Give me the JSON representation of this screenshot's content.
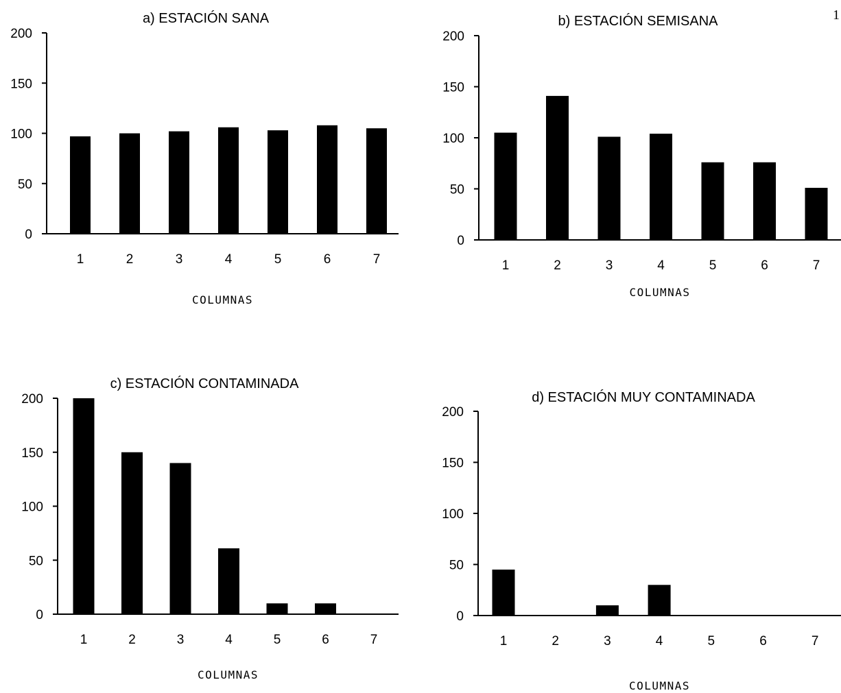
{
  "page_mark": "1",
  "chart_data": [
    {
      "type": "bar",
      "title": "a) ESTACIÓN SANA",
      "xlabel": "COLUMNAS",
      "ylabel": "",
      "ylim": [
        0,
        200
      ],
      "yticks": [
        "0",
        "50",
        "100",
        "150",
        "200"
      ],
      "categories": [
        "1",
        "2",
        "3",
        "4",
        "5",
        "6",
        "7"
      ],
      "values": [
        97,
        100,
        102,
        106,
        103,
        108,
        105
      ],
      "grid": false
    },
    {
      "type": "bar",
      "title": "b) ESTACIÓN SEMISANA",
      "xlabel": "COLUMNAS",
      "ylabel": "",
      "ylim": [
        0,
        200
      ],
      "yticks": [
        "0",
        "50",
        "100",
        "150",
        "200"
      ],
      "categories": [
        "1",
        "2",
        "3",
        "4",
        "5",
        "6",
        "7"
      ],
      "values": [
        105,
        141,
        101,
        104,
        76,
        76,
        51
      ],
      "grid": false
    },
    {
      "type": "bar",
      "title": "c) ESTACIÓN CONTAMINADA",
      "xlabel": "COLUMNAS",
      "ylabel": "",
      "ylim": [
        0,
        200
      ],
      "yticks": [
        "0",
        "50",
        "100",
        "150",
        "200"
      ],
      "categories": [
        "1",
        "2",
        "3",
        "4",
        "5",
        "6",
        "7"
      ],
      "values": [
        200,
        150,
        140,
        61,
        10,
        10,
        0
      ],
      "grid": false
    },
    {
      "type": "bar",
      "title": "d) ESTACIÓN MUY CONTAMINADA",
      "xlabel": "COLUMNAS",
      "ylabel": "",
      "ylim": [
        0,
        200
      ],
      "yticks": [
        "0",
        "50",
        "100",
        "150",
        "200"
      ],
      "categories": [
        "1",
        "2",
        "3",
        "4",
        "5",
        "6",
        "7"
      ],
      "values": [
        45,
        0,
        10,
        30,
        0,
        0,
        0
      ],
      "grid": false
    }
  ]
}
